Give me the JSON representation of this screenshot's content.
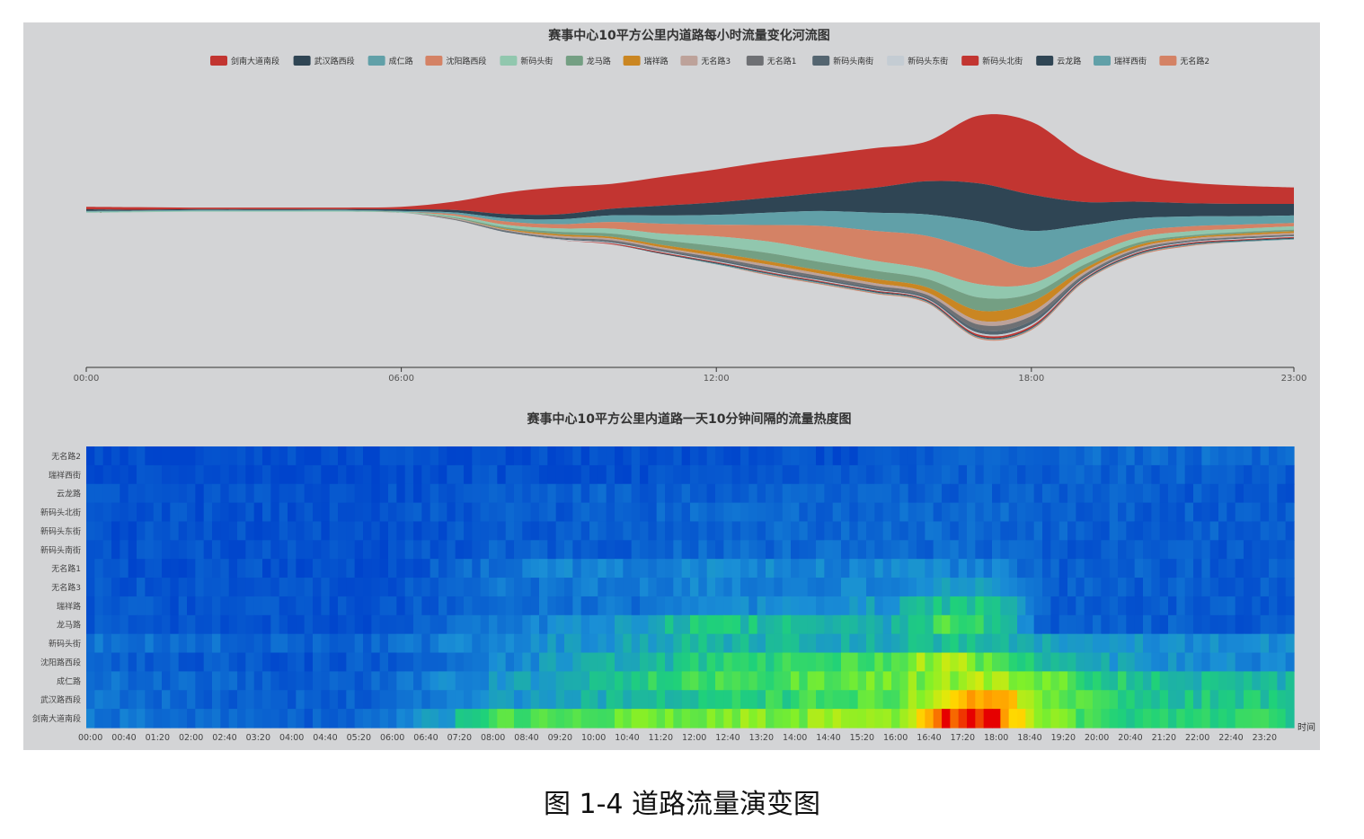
{
  "figure_caption": "图 1-4  道路流量演变图",
  "chart_data": [
    {
      "type": "area",
      "subtype": "streamgraph",
      "title": "赛事中心10平方公里内道路每小时流量变化河流图",
      "x": [
        "00:00",
        "01:00",
        "02:00",
        "03:00",
        "04:00",
        "05:00",
        "06:00",
        "07:00",
        "08:00",
        "09:00",
        "10:00",
        "11:00",
        "12:00",
        "13:00",
        "14:00",
        "15:00",
        "16:00",
        "17:00",
        "18:00",
        "19:00",
        "20:00",
        "21:00",
        "22:00",
        "23:00"
      ],
      "x_ticks": [
        "00:00",
        "06:00",
        "12:00",
        "18:00",
        "23:00"
      ],
      "legend_position": "top-center",
      "series": [
        {
          "name": "剑南大道南段",
          "color": "#c23531",
          "values": [
            3,
            3,
            2,
            2,
            2,
            2,
            3,
            10,
            26,
            33,
            30,
            35,
            40,
            44,
            46,
            48,
            48,
            82,
            88,
            55,
            32,
            25,
            22,
            20
          ]
        },
        {
          "name": "武汉路西段",
          "color": "#2f4554",
          "values": [
            2,
            1,
            1,
            1,
            1,
            1,
            2,
            3,
            5,
            6,
            8,
            12,
            15,
            18,
            22,
            30,
            40,
            46,
            44,
            28,
            20,
            16,
            15,
            14
          ]
        },
        {
          "name": "成仁路",
          "color": "#61a0a8",
          "values": [
            1,
            1,
            1,
            1,
            1,
            1,
            1,
            2,
            4,
            6,
            8,
            10,
            12,
            15,
            18,
            22,
            26,
            36,
            44,
            28,
            16,
            12,
            10,
            9
          ]
        },
        {
          "name": "沈阳路西段",
          "color": "#d48265",
          "values": [
            0,
            0,
            0,
            0,
            0,
            0,
            0,
            2,
            4,
            5,
            8,
            12,
            14,
            20,
            30,
            36,
            40,
            40,
            20,
            12,
            8,
            6,
            5,
            4
          ]
        },
        {
          "name": "新码头街",
          "color": "#91c7ae",
          "values": [
            1,
            1,
            1,
            1,
            1,
            1,
            1,
            2,
            3,
            4,
            6,
            8,
            12,
            14,
            14,
            12,
            12,
            16,
            12,
            8,
            6,
            5,
            4,
            4
          ]
        },
        {
          "name": "龙马路",
          "color": "#749f83",
          "values": [
            0,
            0,
            0,
            0,
            0,
            0,
            0,
            1,
            2,
            3,
            4,
            6,
            8,
            10,
            10,
            10,
            10,
            16,
            10,
            5,
            3,
            2,
            2,
            2
          ]
        },
        {
          "name": "瑞祥路",
          "color": "#ca8622",
          "values": [
            0,
            0,
            0,
            0,
            0,
            0,
            0,
            0,
            1,
            2,
            2,
            3,
            4,
            4,
            4,
            5,
            6,
            12,
            12,
            4,
            3,
            2,
            2,
            2
          ]
        },
        {
          "name": "无名路3",
          "color": "#bda29a",
          "values": [
            0,
            0,
            0,
            0,
            0,
            0,
            0,
            1,
            1,
            2,
            2,
            2,
            2,
            3,
            3,
            3,
            3,
            5,
            5,
            3,
            2,
            2,
            2,
            2
          ]
        },
        {
          "name": "无名路1",
          "color": "#6e7074",
          "values": [
            0,
            0,
            0,
            0,
            0,
            0,
            0,
            1,
            1,
            1,
            2,
            2,
            2,
            3,
            3,
            3,
            3,
            6,
            6,
            2,
            2,
            1,
            1,
            1
          ]
        },
        {
          "name": "新码头南街",
          "color": "#546570",
          "values": [
            0,
            0,
            0,
            0,
            0,
            0,
            0,
            0,
            1,
            1,
            1,
            1,
            2,
            2,
            2,
            2,
            2,
            4,
            4,
            2,
            1,
            1,
            1,
            1
          ]
        },
        {
          "name": "新码头东街",
          "color": "#c4ccd3",
          "values": [
            0,
            0,
            0,
            0,
            0,
            0,
            0,
            0,
            0,
            1,
            1,
            1,
            1,
            1,
            1,
            1,
            1,
            2,
            2,
            1,
            1,
            1,
            1,
            1
          ]
        },
        {
          "name": "新码头北街",
          "color": "#c23531",
          "values": [
            0,
            0,
            0,
            0,
            0,
            0,
            0,
            0,
            0,
            0,
            1,
            1,
            1,
            1,
            1,
            1,
            1,
            2,
            2,
            1,
            1,
            1,
            1,
            1
          ]
        },
        {
          "name": "云龙路",
          "color": "#2f4554",
          "values": [
            0,
            0,
            0,
            0,
            0,
            0,
            0,
            0,
            0,
            0,
            0,
            1,
            1,
            1,
            1,
            1,
            1,
            1,
            1,
            1,
            1,
            1,
            1,
            1
          ]
        },
        {
          "name": "瑞祥西街",
          "color": "#61a0a8",
          "values": [
            0,
            0,
            0,
            0,
            0,
            0,
            0,
            0,
            0,
            0,
            0,
            0,
            1,
            1,
            1,
            1,
            1,
            1,
            1,
            1,
            1,
            1,
            1,
            1
          ]
        },
        {
          "name": "无名路2",
          "color": "#d48265",
          "values": [
            0,
            0,
            0,
            0,
            0,
            0,
            0,
            0,
            0,
            0,
            0,
            0,
            0,
            1,
            1,
            1,
            1,
            1,
            1,
            1,
            1,
            1,
            0,
            0
          ]
        }
      ]
    },
    {
      "type": "heatmap",
      "title": "赛事中心10平方公里内道路一天10分钟间隔的流量热度图",
      "xlabel": "时间",
      "x_ticks": [
        "00:00",
        "00:40",
        "01:20",
        "02:00",
        "02:40",
        "03:20",
        "04:00",
        "04:40",
        "05:20",
        "06:00",
        "06:40",
        "07:20",
        "08:00",
        "08:40",
        "09:20",
        "10:00",
        "10:40",
        "11:20",
        "12:00",
        "12:40",
        "13:20",
        "14:00",
        "14:40",
        "15:20",
        "16:00",
        "16:40",
        "17:20",
        "18:00",
        "18:40",
        "19:20",
        "20:00",
        "20:40",
        "21:20",
        "22:00",
        "22:40",
        "23:20"
      ],
      "y_categories": [
        "无名路2",
        "瑞祥西街",
        "云龙路",
        "新码头北街",
        "新码头东街",
        "新码头南街",
        "无名路1",
        "无名路3",
        "瑞祥路",
        "龙马路",
        "新码头街",
        "沈阳路西段",
        "成仁路",
        "武汉路西段",
        "剑南大道南段"
      ],
      "interval_minutes": 10,
      "columns": 144,
      "colormap": [
        "#0044cc",
        "#1a8fd6",
        "#1fd17a",
        "#7ff02a",
        "#ffe600",
        "#ff9900",
        "#e60000"
      ],
      "value_range": [
        0,
        1
      ],
      "hourly_intensity": {
        "无名路2": [
          0.02,
          0.02,
          0.02,
          0.02,
          0.02,
          0.02,
          0.02,
          0.02,
          0.02,
          0.02,
          0.02,
          0.02,
          0.02,
          0.03,
          0.03,
          0.03,
          0.04,
          0.05,
          0.05,
          0.06,
          0.08,
          0.08,
          0.08,
          0.08
        ],
        "瑞祥西街": [
          0.02,
          0.02,
          0.02,
          0.02,
          0.02,
          0.02,
          0.02,
          0.02,
          0.03,
          0.03,
          0.03,
          0.03,
          0.04,
          0.04,
          0.05,
          0.06,
          0.06,
          0.06,
          0.06,
          0.06,
          0.06,
          0.06,
          0.06,
          0.05
        ],
        "云龙路": [
          0.04,
          0.04,
          0.03,
          0.03,
          0.03,
          0.03,
          0.03,
          0.04,
          0.05,
          0.05,
          0.06,
          0.06,
          0.06,
          0.06,
          0.06,
          0.06,
          0.06,
          0.06,
          0.06,
          0.06,
          0.06,
          0.06,
          0.05,
          0.05
        ],
        "新码头北街": [
          0.03,
          0.03,
          0.03,
          0.03,
          0.03,
          0.03,
          0.03,
          0.04,
          0.05,
          0.05,
          0.06,
          0.06,
          0.08,
          0.08,
          0.08,
          0.08,
          0.08,
          0.08,
          0.08,
          0.06,
          0.06,
          0.06,
          0.06,
          0.05
        ],
        "新码头东街": [
          0.03,
          0.03,
          0.03,
          0.03,
          0.03,
          0.03,
          0.03,
          0.04,
          0.05,
          0.05,
          0.06,
          0.06,
          0.08,
          0.08,
          0.08,
          0.08,
          0.08,
          0.08,
          0.08,
          0.06,
          0.06,
          0.06,
          0.06,
          0.05
        ],
        "新码头南街": [
          0.03,
          0.03,
          0.03,
          0.03,
          0.03,
          0.03,
          0.03,
          0.04,
          0.06,
          0.06,
          0.06,
          0.06,
          0.08,
          0.08,
          0.08,
          0.08,
          0.08,
          0.08,
          0.08,
          0.06,
          0.05,
          0.05,
          0.05,
          0.05
        ],
        "无名路1": [
          0.03,
          0.03,
          0.03,
          0.03,
          0.03,
          0.03,
          0.03,
          0.06,
          0.1,
          0.14,
          0.14,
          0.14,
          0.15,
          0.15,
          0.14,
          0.14,
          0.14,
          0.14,
          0.14,
          0.06,
          0.06,
          0.06,
          0.06,
          0.05
        ],
        "无名路3": [
          0.04,
          0.04,
          0.04,
          0.04,
          0.04,
          0.04,
          0.04,
          0.06,
          0.1,
          0.1,
          0.12,
          0.12,
          0.14,
          0.14,
          0.14,
          0.14,
          0.14,
          0.18,
          0.18,
          0.06,
          0.06,
          0.06,
          0.06,
          0.05
        ],
        "瑞祥路": [
          0.04,
          0.04,
          0.04,
          0.04,
          0.03,
          0.03,
          0.04,
          0.06,
          0.08,
          0.1,
          0.1,
          0.1,
          0.12,
          0.14,
          0.16,
          0.18,
          0.2,
          0.3,
          0.32,
          0.06,
          0.06,
          0.06,
          0.06,
          0.05
        ],
        "龙马路": [
          0.04,
          0.04,
          0.04,
          0.04,
          0.03,
          0.03,
          0.04,
          0.08,
          0.12,
          0.14,
          0.16,
          0.22,
          0.3,
          0.3,
          0.28,
          0.26,
          0.24,
          0.4,
          0.3,
          0.06,
          0.06,
          0.06,
          0.06,
          0.05
        ],
        "新码头街": [
          0.12,
          0.1,
          0.1,
          0.08,
          0.06,
          0.06,
          0.08,
          0.12,
          0.16,
          0.18,
          0.2,
          0.22,
          0.26,
          0.26,
          0.26,
          0.24,
          0.24,
          0.3,
          0.26,
          0.22,
          0.2,
          0.18,
          0.17,
          0.16
        ],
        "沈阳路西段": [
          0.06,
          0.05,
          0.05,
          0.05,
          0.04,
          0.04,
          0.06,
          0.1,
          0.14,
          0.18,
          0.22,
          0.26,
          0.3,
          0.34,
          0.38,
          0.4,
          0.42,
          0.6,
          0.4,
          0.28,
          0.22,
          0.18,
          0.16,
          0.15
        ],
        "成仁路": [
          0.1,
          0.08,
          0.08,
          0.06,
          0.05,
          0.05,
          0.08,
          0.14,
          0.18,
          0.22,
          0.28,
          0.34,
          0.38,
          0.4,
          0.42,
          0.44,
          0.46,
          0.52,
          0.58,
          0.46,
          0.34,
          0.3,
          0.28,
          0.26
        ],
        "武汉路西段": [
          0.1,
          0.08,
          0.08,
          0.06,
          0.06,
          0.06,
          0.08,
          0.14,
          0.18,
          0.2,
          0.24,
          0.28,
          0.32,
          0.34,
          0.36,
          0.4,
          0.46,
          0.7,
          0.8,
          0.48,
          0.36,
          0.32,
          0.3,
          0.32
        ],
        "剑南大道南段": [
          0.12,
          0.1,
          0.08,
          0.08,
          0.06,
          0.06,
          0.1,
          0.2,
          0.4,
          0.44,
          0.44,
          0.46,
          0.48,
          0.5,
          0.5,
          0.5,
          0.52,
          0.95,
          0.95,
          0.48,
          0.38,
          0.34,
          0.32,
          0.34
        ]
      }
    }
  ]
}
